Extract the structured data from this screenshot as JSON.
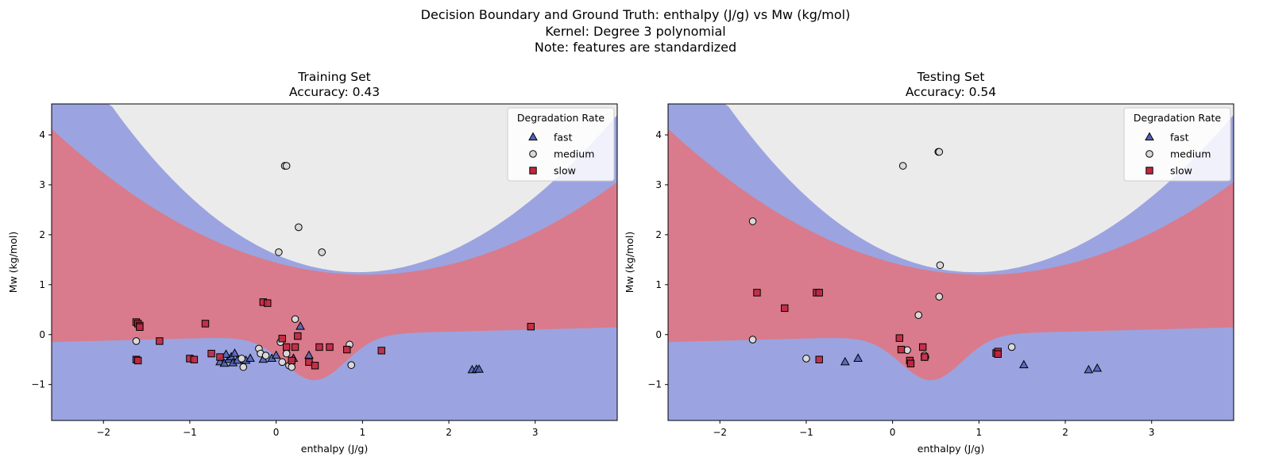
{
  "figure": {
    "suptitle_lines": [
      "Decision Boundary and Ground Truth: enthalpy (J/g) vs Mw (kg/mol)",
      "Kernel: Degree 3 polynomial",
      "Note: features are standardized"
    ]
  },
  "chart_data": [
    {
      "type": "scatter",
      "title": "Training Set",
      "subtitle": "Accuracy: 0.43",
      "xlabel": "enthalpy (J/g)",
      "ylabel": "Mw (kg/mol)",
      "xlim": [
        -2.6,
        3.95
      ],
      "ylim": [
        -1.72,
        4.62
      ],
      "xticks": [
        -2,
        -1,
        0,
        1,
        2,
        3
      ],
      "yticks": [
        -1,
        0,
        1,
        2,
        3,
        4
      ],
      "grid": false,
      "legend": {
        "title": "Degradation Rate",
        "placement": "upper right",
        "entries": [
          "fast",
          "medium",
          "slow"
        ]
      },
      "decision_regions": {
        "fast_color": "#9ba4e0",
        "slow_color": "#d97b8c",
        "medium_color": "#ebebeb"
      },
      "series": [
        {
          "name": "fast",
          "marker": "triangle",
          "color": "#5161b8",
          "points": [
            [
              -0.65,
              -0.55
            ],
            [
              -0.6,
              -0.58
            ],
            [
              -0.55,
              -0.5
            ],
            [
              -0.52,
              -0.45
            ],
            [
              -0.48,
              -0.38
            ],
            [
              -0.58,
              -0.4
            ],
            [
              -0.5,
              -0.57
            ],
            [
              -0.45,
              -0.52
            ],
            [
              -0.35,
              -0.52
            ],
            [
              -0.3,
              -0.48
            ],
            [
              -0.15,
              -0.5
            ],
            [
              -0.05,
              -0.48
            ],
            [
              0.0,
              -0.42
            ],
            [
              0.2,
              -0.48
            ],
            [
              0.28,
              0.16
            ],
            [
              0.38,
              -0.42
            ],
            [
              2.27,
              -0.71
            ],
            [
              2.32,
              -0.7
            ],
            [
              2.35,
              -0.7
            ]
          ]
        },
        {
          "name": "medium",
          "marker": "circle",
          "color": "#d9d9d9",
          "points": [
            [
              -1.62,
              -0.13
            ],
            [
              -0.4,
              -0.48
            ],
            [
              -0.38,
              -0.65
            ],
            [
              -0.2,
              -0.28
            ],
            [
              -0.18,
              -0.38
            ],
            [
              -0.12,
              -0.42
            ],
            [
              0.05,
              -0.15
            ],
            [
              0.07,
              -0.55
            ],
            [
              0.12,
              -0.38
            ],
            [
              0.15,
              -0.62
            ],
            [
              0.18,
              -0.65
            ],
            [
              0.22,
              0.31
            ],
            [
              0.1,
              3.38
            ],
            [
              0.12,
              3.38
            ],
            [
              0.26,
              2.15
            ],
            [
              0.03,
              1.65
            ],
            [
              0.53,
              1.65
            ],
            [
              0.85,
              -0.2
            ],
            [
              0.87,
              -0.61
            ]
          ]
        },
        {
          "name": "slow",
          "marker": "square",
          "color": "#c0283f",
          "points": [
            [
              -1.62,
              0.25
            ],
            [
              -1.6,
              0.22
            ],
            [
              -1.58,
              0.18
            ],
            [
              -1.58,
              0.15
            ],
            [
              -1.62,
              -0.5
            ],
            [
              -1.6,
              -0.52
            ],
            [
              -1.35,
              -0.13
            ],
            [
              -1.0,
              -0.48
            ],
            [
              -0.95,
              -0.5
            ],
            [
              -0.82,
              0.22
            ],
            [
              -0.75,
              -0.38
            ],
            [
              -0.65,
              -0.45
            ],
            [
              -0.15,
              0.65
            ],
            [
              -0.1,
              0.63
            ],
            [
              0.07,
              -0.08
            ],
            [
              0.12,
              -0.25
            ],
            [
              0.18,
              -0.52
            ],
            [
              0.22,
              -0.25
            ],
            [
              0.25,
              -0.03
            ],
            [
              0.38,
              -0.55
            ],
            [
              0.45,
              -0.62
            ],
            [
              0.5,
              -0.25
            ],
            [
              0.62,
              -0.25
            ],
            [
              0.82,
              -0.3
            ],
            [
              1.22,
              -0.32
            ],
            [
              2.95,
              0.16
            ]
          ]
        }
      ]
    },
    {
      "type": "scatter",
      "title": "Testing Set",
      "subtitle": "Accuracy: 0.54",
      "xlabel": "enthalpy (J/g)",
      "ylabel": "Mw (kg/mol)",
      "xlim": [
        -2.6,
        3.95
      ],
      "ylim": [
        -1.72,
        4.62
      ],
      "xticks": [
        -2,
        -1,
        0,
        1,
        2,
        3
      ],
      "yticks": [
        -1,
        0,
        1,
        2,
        3,
        4
      ],
      "grid": false,
      "legend": {
        "title": "Degradation Rate",
        "placement": "upper right",
        "entries": [
          "fast",
          "medium",
          "slow"
        ]
      },
      "decision_regions": {
        "fast_color": "#9ba4e0",
        "slow_color": "#d97b8c",
        "medium_color": "#ebebeb"
      },
      "series": [
        {
          "name": "fast",
          "marker": "triangle",
          "color": "#5161b8",
          "points": [
            [
              -0.55,
              -0.55
            ],
            [
              -0.4,
              -0.48
            ],
            [
              1.52,
              -0.61
            ],
            [
              2.27,
              -0.71
            ],
            [
              2.37,
              -0.68
            ]
          ]
        },
        {
          "name": "medium",
          "marker": "circle",
          "color": "#d9d9d9",
          "points": [
            [
              -1.62,
              2.27
            ],
            [
              -1.62,
              -0.1
            ],
            [
              -1.0,
              -0.48
            ],
            [
              0.12,
              3.38
            ],
            [
              0.53,
              3.66
            ],
            [
              0.54,
              3.66
            ],
            [
              0.55,
              1.39
            ],
            [
              0.54,
              0.76
            ],
            [
              0.3,
              0.39
            ],
            [
              0.17,
              -0.31
            ],
            [
              0.2,
              -0.55
            ],
            [
              0.37,
              -0.42
            ],
            [
              0.38,
              -0.45
            ],
            [
              1.38,
              -0.25
            ]
          ]
        },
        {
          "name": "slow",
          "marker": "square",
          "color": "#c0283f",
          "points": [
            [
              -1.57,
              0.84
            ],
            [
              -1.25,
              0.53
            ],
            [
              -0.88,
              0.84
            ],
            [
              -0.85,
              0.84
            ],
            [
              -0.85,
              -0.5
            ],
            [
              0.08,
              -0.07
            ],
            [
              0.1,
              -0.3
            ],
            [
              0.2,
              -0.52
            ],
            [
              0.21,
              -0.58
            ],
            [
              0.35,
              -0.25
            ],
            [
              0.37,
              -0.45
            ],
            [
              1.2,
              -0.37
            ],
            [
              1.22,
              -0.34
            ],
            [
              1.22,
              -0.39
            ]
          ]
        }
      ]
    }
  ]
}
